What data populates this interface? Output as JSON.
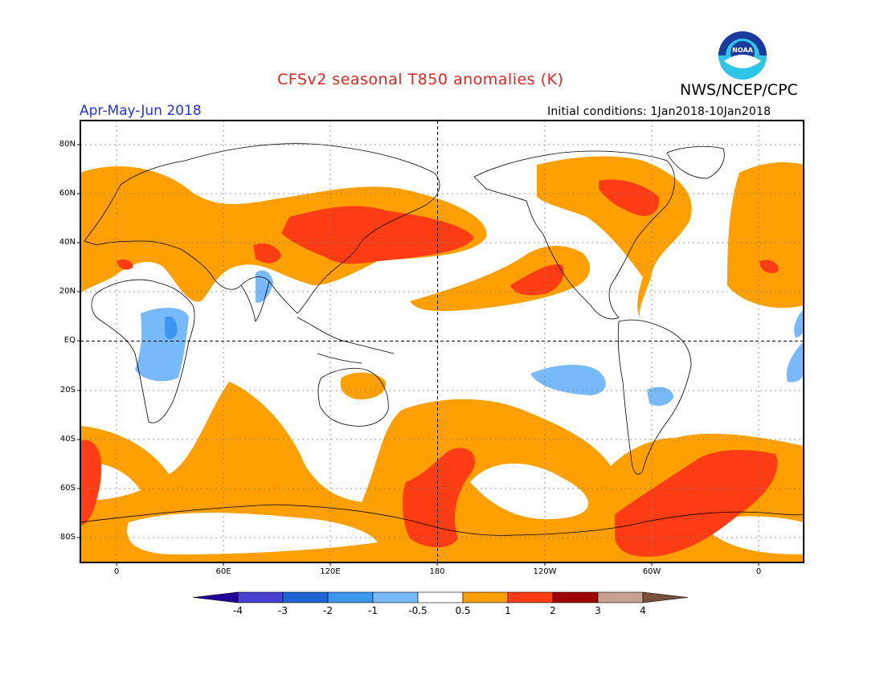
{
  "header": {
    "title": "CFSv2 seasonal T850 anomalies (K)",
    "agency": "NWS/NCEP/CPC",
    "season": "Apr-May-Jun 2018",
    "initial_conditions": "Initial conditions: 1Jan2018-10Jan2018",
    "logo_text": "NOAA"
  },
  "axes": {
    "lat_labels": [
      "80N",
      "60N",
      "40N",
      "20N",
      "EQ",
      "20S",
      "40S",
      "60S",
      "80S"
    ],
    "lon_labels": [
      "0",
      "60E",
      "120E",
      "180",
      "120W",
      "60W",
      "0"
    ]
  },
  "colorbar": {
    "labels": [
      "-4",
      "-3",
      "-2",
      "-1",
      "-0.5",
      "0.5",
      "1",
      "2",
      "3",
      "4"
    ],
    "colors": [
      "#200096",
      "#4b3fd0",
      "#1e64d2",
      "#3c96f0",
      "#78b9fa",
      "#ffffff",
      "#ffa000",
      "#ff3c14",
      "#a00000",
      "#c8a090",
      "#78503c"
    ]
  },
  "colors": {
    "warm_1": "#ffa000",
    "warm_2": "#ff3c14",
    "cool_1": "#78b9fa",
    "cool_2": "#3c96f0",
    "title_red": "#e8231e",
    "season_blue": "#2233ee"
  }
}
